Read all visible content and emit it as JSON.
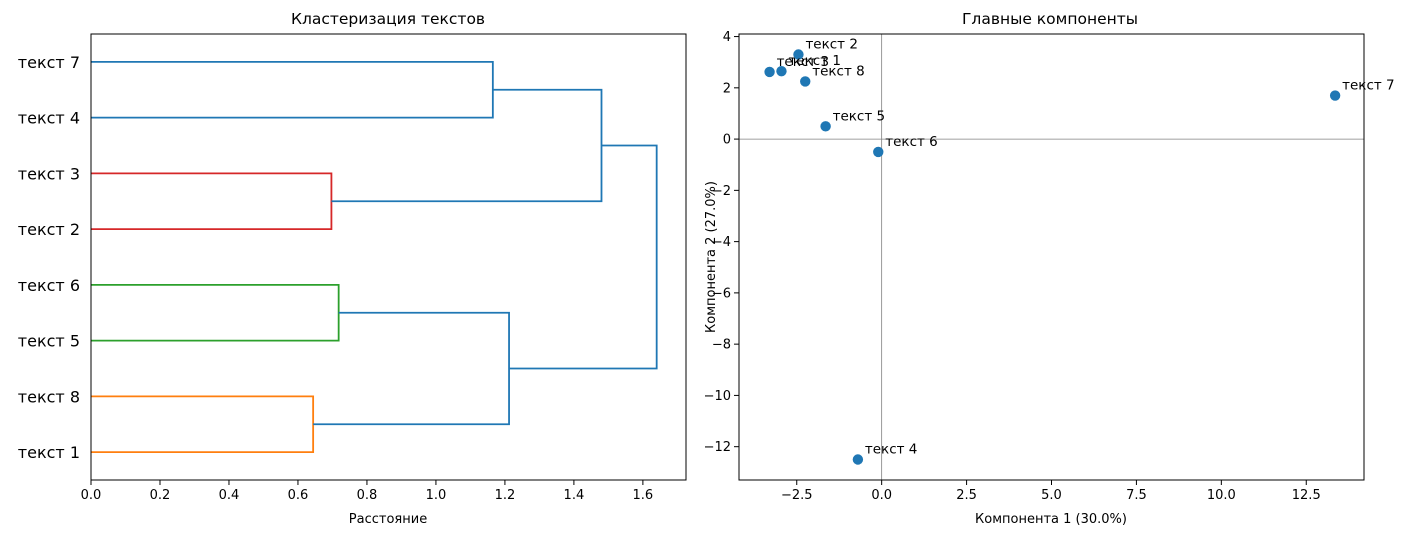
{
  "chart_data": [
    {
      "type": "dendrogram",
      "title": "Кластеризация текстов",
      "xlabel": "Расстояние",
      "ylabel": "",
      "orientation": "horizontal",
      "xlim": [
        0,
        1.725
      ],
      "xticks": [
        0.0,
        0.2,
        0.4,
        0.6,
        0.8,
        1.0,
        1.2,
        1.4,
        1.6
      ],
      "xtick_labels": [
        "0.0",
        "0.2",
        "0.4",
        "0.6",
        "0.8",
        "1.0",
        "1.2",
        "1.4",
        "1.6"
      ],
      "leaves": [
        "текст 7",
        "текст 4",
        "текст 3",
        "текст 2",
        "текст 6",
        "текст 5",
        "текст 8",
        "текст 1"
      ],
      "links": [
        {
          "a": "leaf:0",
          "b": "leaf:1",
          "height": 1.165,
          "color": "#1f77b4"
        },
        {
          "a": "leaf:2",
          "b": "leaf:3",
          "height": 0.697,
          "color": "#d62728"
        },
        {
          "a": "leaf:4",
          "b": "leaf:5",
          "height": 0.718,
          "color": "#2ca02c"
        },
        {
          "a": "leaf:6",
          "b": "leaf:7",
          "height": 0.644,
          "color": "#ff7f0e"
        },
        {
          "a": "link:2",
          "b": "link:3",
          "height": 1.212,
          "color": "#1f77b4"
        },
        {
          "a": "link:0",
          "b": "link:1",
          "height": 1.48,
          "color": "#1f77b4"
        },
        {
          "a": "link:5",
          "b": "link:4",
          "height": 1.64,
          "color": "#1f77b4"
        }
      ]
    },
    {
      "type": "scatter",
      "title": "Главные компоненты",
      "xlabel": "Компонента 1 (30.0%)",
      "ylabel": "Компонента 2 (27.0%)",
      "xlim": [
        -4.2,
        14.2
      ],
      "ylim": [
        -13.3,
        4.1
      ],
      "xticks": [
        -2.5,
        0.0,
        2.5,
        5.0,
        7.5,
        10.0,
        12.5
      ],
      "xtick_labels": [
        "−2.5",
        "0.0",
        "2.5",
        "5.0",
        "7.5",
        "10.0",
        "12.5"
      ],
      "yticks": [
        4,
        2,
        0,
        -2,
        -4,
        -6,
        -8,
        -10,
        -12
      ],
      "ytick_labels": [
        "4",
        "2",
        "0",
        "−2",
        "−4",
        "−6",
        "−8",
        "−10",
        "−12"
      ],
      "color": "#1f77b4",
      "zero_lines": true,
      "points": [
        {
          "label": "текст 1",
          "x": -2.95,
          "y": 2.65
        },
        {
          "label": "текст 2",
          "x": -2.45,
          "y": 3.3
        },
        {
          "label": "текст 3",
          "x": -3.3,
          "y": 2.62
        },
        {
          "label": "текст 4",
          "x": -0.7,
          "y": -12.5
        },
        {
          "label": "текст 5",
          "x": -1.65,
          "y": 0.5
        },
        {
          "label": "текст 6",
          "x": -0.1,
          "y": -0.5
        },
        {
          "label": "текст 7",
          "x": 13.35,
          "y": 1.7
        },
        {
          "label": "текст 8",
          "x": -2.25,
          "y": 2.25
        }
      ]
    }
  ]
}
